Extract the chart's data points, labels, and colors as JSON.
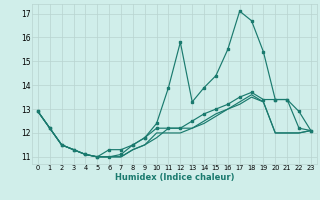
{
  "xlabel": "Humidex (Indice chaleur)",
  "xlim": [
    -0.5,
    23.5
  ],
  "ylim": [
    10.7,
    17.4
  ],
  "xticks": [
    0,
    1,
    2,
    3,
    4,
    5,
    6,
    7,
    8,
    9,
    10,
    11,
    12,
    13,
    14,
    15,
    16,
    17,
    18,
    19,
    20,
    21,
    22,
    23
  ],
  "yticks": [
    11,
    12,
    13,
    14,
    15,
    16,
    17
  ],
  "bg_color": "#d0eeea",
  "grid_color": "#b8d4d0",
  "line_color": "#1a7a6e",
  "line1_x": [
    0,
    1,
    2,
    3,
    4,
    5,
    6,
    7,
    8,
    9,
    10,
    11,
    12,
    13,
    14,
    15,
    16,
    17,
    18,
    19,
    20,
    21,
    22,
    23
  ],
  "line1_y": [
    12.9,
    12.2,
    11.5,
    11.3,
    11.1,
    11.0,
    11.0,
    11.1,
    11.5,
    11.8,
    12.4,
    13.9,
    15.8,
    13.3,
    13.9,
    14.4,
    15.5,
    17.1,
    16.7,
    15.4,
    13.4,
    13.4,
    12.9,
    12.1
  ],
  "line2_x": [
    0,
    1,
    2,
    3,
    4,
    5,
    6,
    7,
    8,
    9,
    10,
    11,
    12,
    13,
    14,
    15,
    16,
    17,
    18,
    19,
    20,
    21,
    22,
    23
  ],
  "line2_y": [
    12.9,
    12.2,
    11.5,
    11.3,
    11.1,
    11.0,
    11.3,
    11.3,
    11.5,
    11.8,
    12.2,
    12.2,
    12.2,
    12.5,
    12.8,
    13.0,
    13.2,
    13.5,
    13.7,
    13.4,
    13.4,
    13.4,
    12.2,
    12.1
  ],
  "line3_x": [
    0,
    1,
    2,
    3,
    4,
    5,
    6,
    7,
    8,
    9,
    10,
    11,
    12,
    13,
    14,
    15,
    16,
    17,
    18,
    19,
    20,
    21,
    22,
    23
  ],
  "line3_y": [
    12.9,
    12.2,
    11.5,
    11.3,
    11.1,
    11.0,
    11.0,
    11.0,
    11.3,
    11.5,
    12.0,
    12.0,
    12.0,
    12.2,
    12.4,
    12.7,
    13.0,
    13.3,
    13.6,
    13.3,
    12.0,
    12.0,
    12.0,
    12.1
  ],
  "line4_x": [
    0,
    1,
    2,
    3,
    4,
    5,
    6,
    7,
    8,
    9,
    10,
    11,
    12,
    13,
    14,
    15,
    16,
    17,
    18,
    19,
    20,
    21,
    22,
    23
  ],
  "line4_y": [
    12.9,
    12.2,
    11.5,
    11.3,
    11.1,
    11.0,
    11.0,
    11.0,
    11.3,
    11.5,
    11.8,
    12.2,
    12.2,
    12.2,
    12.5,
    12.8,
    13.0,
    13.2,
    13.5,
    13.3,
    12.0,
    12.0,
    12.0,
    12.1
  ]
}
